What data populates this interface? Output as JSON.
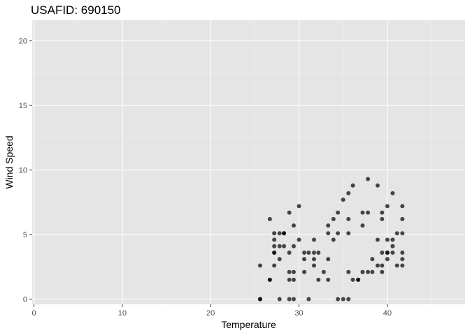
{
  "chart_data": {
    "type": "scatter",
    "title": "USAFID: 690150",
    "xlabel": "Temperature",
    "ylabel": "Wind Speed",
    "xlim": [
      -0.2,
      48.8
    ],
    "ylim": [
      -0.4,
      21.6
    ],
    "xticks": [
      0,
      10,
      20,
      30,
      40
    ],
    "yticks": [
      0,
      5,
      10,
      15,
      20
    ],
    "grid": true,
    "legend": "none",
    "colors": {
      "panel_bg": "#e5e5e5",
      "grid_major": "#ffffff",
      "grid_minor": "#f2f2f2",
      "point": "#000000",
      "point_alpha": 0.7
    },
    "points": [
      [
        25.6,
        2.6
      ],
      [
        25.6,
        0.0
      ],
      [
        25.6,
        0.0
      ],
      [
        26.7,
        1.5
      ],
      [
        26.7,
        6.2
      ],
      [
        26.7,
        1.5
      ],
      [
        27.2,
        5.1
      ],
      [
        27.2,
        4.6
      ],
      [
        27.2,
        4.1
      ],
      [
        27.2,
        3.6
      ],
      [
        27.2,
        2.6
      ],
      [
        27.2,
        3.6
      ],
      [
        27.8,
        5.1
      ],
      [
        27.8,
        4.1
      ],
      [
        27.8,
        3.1
      ],
      [
        27.8,
        0.0
      ],
      [
        28.3,
        5.1
      ],
      [
        28.3,
        4.1
      ],
      [
        28.3,
        5.1
      ],
      [
        28.9,
        6.7
      ],
      [
        28.9,
        3.6
      ],
      [
        28.9,
        2.1
      ],
      [
        28.9,
        1.5
      ],
      [
        28.9,
        0.0
      ],
      [
        29.4,
        5.7
      ],
      [
        29.4,
        4.1
      ],
      [
        29.4,
        2.1
      ],
      [
        29.4,
        1.5
      ],
      [
        29.4,
        0.0
      ],
      [
        30.0,
        7.2
      ],
      [
        30.0,
        4.6
      ],
      [
        30.6,
        3.6
      ],
      [
        30.6,
        3.1
      ],
      [
        30.6,
        2.1
      ],
      [
        31.1,
        3.6
      ],
      [
        31.1,
        0.0
      ],
      [
        31.7,
        4.6
      ],
      [
        31.7,
        3.6
      ],
      [
        31.7,
        3.1
      ],
      [
        31.7,
        2.6
      ],
      [
        32.2,
        3.6
      ],
      [
        32.2,
        1.5
      ],
      [
        32.8,
        2.1
      ],
      [
        33.3,
        5.7
      ],
      [
        33.3,
        5.1
      ],
      [
        33.3,
        3.1
      ],
      [
        33.3,
        1.5
      ],
      [
        33.9,
        6.2
      ],
      [
        33.9,
        4.6
      ],
      [
        34.4,
        6.7
      ],
      [
        34.4,
        5.1
      ],
      [
        34.4,
        0.0
      ],
      [
        35.0,
        7.7
      ],
      [
        35.0,
        0.0
      ],
      [
        35.6,
        8.2
      ],
      [
        35.6,
        6.2
      ],
      [
        35.6,
        5.1
      ],
      [
        35.6,
        2.1
      ],
      [
        35.6,
        0.0
      ],
      [
        36.1,
        8.8
      ],
      [
        36.1,
        1.5
      ],
      [
        36.7,
        1.5
      ],
      [
        36.7,
        1.5
      ],
      [
        37.2,
        6.7
      ],
      [
        37.2,
        5.7
      ],
      [
        37.2,
        2.1
      ],
      [
        37.8,
        9.3
      ],
      [
        37.8,
        6.7
      ],
      [
        37.8,
        2.1
      ],
      [
        38.3,
        3.1
      ],
      [
        38.3,
        2.1
      ],
      [
        38.9,
        8.8
      ],
      [
        38.9,
        4.6
      ],
      [
        38.9,
        2.6
      ],
      [
        39.4,
        6.7
      ],
      [
        39.4,
        6.2
      ],
      [
        39.4,
        3.6
      ],
      [
        39.4,
        2.6
      ],
      [
        39.4,
        2.1
      ],
      [
        40.0,
        7.2
      ],
      [
        40.0,
        4.6
      ],
      [
        40.0,
        3.6
      ],
      [
        40.0,
        3.1
      ],
      [
        40.0,
        3.6
      ],
      [
        40.6,
        8.2
      ],
      [
        40.6,
        4.6
      ],
      [
        40.6,
        4.1
      ],
      [
        40.6,
        3.6
      ],
      [
        41.1,
        5.1
      ],
      [
        41.1,
        2.6
      ],
      [
        41.7,
        7.2
      ],
      [
        41.7,
        6.2
      ],
      [
        41.7,
        5.1
      ],
      [
        41.7,
        3.6
      ],
      [
        41.7,
        3.1
      ],
      [
        41.7,
        2.6
      ]
    ]
  }
}
